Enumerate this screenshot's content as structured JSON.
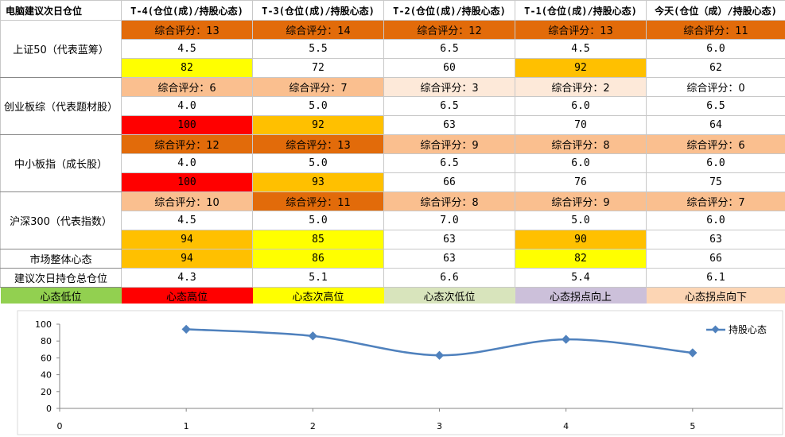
{
  "colors": {
    "dark_orange": "#e26b0a",
    "light_peach": "#fabf8f",
    "very_light_peach": "#fde9d9",
    "orange": "#ffc000",
    "yellow": "#ffff00",
    "red": "#ff0000",
    "green": "#92d050",
    "sage": "#d8e4bc",
    "lavender": "#ccc0da",
    "peach": "#fcd5b4",
    "white": "#ffffff",
    "line_blue": "#4f81bd"
  },
  "header": {
    "corner": "电脑建议次日仓位",
    "columns": [
      "T-4(仓位(成)/持股心态)",
      "T-3(仓位(成)/持股心态)",
      "T-2(仓位(成)/持股心态)",
      "T-1(仓位(成)/持股心态)",
      "今天(仓位（成）/持股心态)"
    ]
  },
  "groups": [
    {
      "label": "上证50（代表蓝筹）",
      "scores": [
        "综合评分：13",
        "综合评分：14",
        "综合评分：12",
        "综合评分：13",
        "综合评分：11"
      ],
      "score_colors": [
        "dark_orange",
        "dark_orange",
        "dark_orange",
        "dark_orange",
        "dark_orange"
      ],
      "positions": [
        "4.5",
        "5.5",
        "6.5",
        "4.5",
        "6.0"
      ],
      "moods": [
        "82",
        "72",
        "60",
        "92",
        "62"
      ],
      "mood_colors": [
        "yellow",
        "white",
        "white",
        "orange",
        "white"
      ]
    },
    {
      "label": "创业板综（代表题材股）",
      "scores": [
        "综合评分：6",
        "综合评分：7",
        "综合评分：3",
        "综合评分：2",
        "综合评分：0"
      ],
      "score_colors": [
        "light_peach",
        "light_peach",
        "very_light_peach",
        "very_light_peach",
        "white"
      ],
      "positions": [
        "4.0",
        "5.0",
        "6.5",
        "6.0",
        "6.5"
      ],
      "moods": [
        "100",
        "92",
        "63",
        "70",
        "64"
      ],
      "mood_colors": [
        "red",
        "orange",
        "white",
        "white",
        "white"
      ]
    },
    {
      "label": "中小板指（成长股）",
      "scores": [
        "综合评分：12",
        "综合评分：13",
        "综合评分：9",
        "综合评分：8",
        "综合评分：6"
      ],
      "score_colors": [
        "dark_orange",
        "dark_orange",
        "light_peach",
        "light_peach",
        "light_peach"
      ],
      "positions": [
        "4.0",
        "5.0",
        "6.5",
        "6.0",
        "6.0"
      ],
      "moods": [
        "100",
        "93",
        "66",
        "76",
        "75"
      ],
      "mood_colors": [
        "red",
        "orange",
        "white",
        "white",
        "white"
      ]
    },
    {
      "label": "沪深300（代表指数）",
      "scores": [
        "综合评分：10",
        "综合评分：11",
        "综合评分：8",
        "综合评分：9",
        "综合评分：7"
      ],
      "score_colors": [
        "light_peach",
        "dark_orange",
        "light_peach",
        "light_peach",
        "light_peach"
      ],
      "positions": [
        "4.5",
        "5.0",
        "7.0",
        "5.0",
        "6.0"
      ],
      "moods": [
        "94",
        "85",
        "63",
        "90",
        "63"
      ],
      "mood_colors": [
        "orange",
        "yellow",
        "white",
        "orange",
        "white"
      ]
    }
  ],
  "market": {
    "label": "市场整体心态",
    "values": [
      "94",
      "86",
      "63",
      "82",
      "66"
    ],
    "colors": [
      "orange",
      "yellow",
      "white",
      "yellow",
      "white"
    ]
  },
  "suggest": {
    "label": "建议次日持仓总仓位",
    "values": [
      "4.3",
      "5.1",
      "6.6",
      "5.4",
      "6.1"
    ]
  },
  "legend": [
    {
      "label": "心态低位",
      "color": "green"
    },
    {
      "label": "心态高位",
      "color": "red"
    },
    {
      "label": "心态次高位",
      "color": "yellow"
    },
    {
      "label": "心态次低位",
      "color": "sage"
    },
    {
      "label": "心态拐点向上",
      "color": "lavender"
    },
    {
      "label": "心态拐点向下",
      "color": "peach"
    }
  ],
  "chart_data": {
    "type": "line",
    "x": [
      1,
      2,
      3,
      4,
      5
    ],
    "series": [
      {
        "name": "持股心态",
        "values": [
          94,
          86,
          63,
          82,
          66
        ]
      }
    ],
    "xlim": [
      0,
      6
    ],
    "ylim": [
      0,
      100
    ],
    "x_ticks": [
      "0",
      "1",
      "2",
      "3",
      "4",
      "5"
    ],
    "y_ticks": [
      "0",
      "20",
      "40",
      "60",
      "80",
      "100"
    ],
    "legend_position": "right",
    "grid": false
  }
}
